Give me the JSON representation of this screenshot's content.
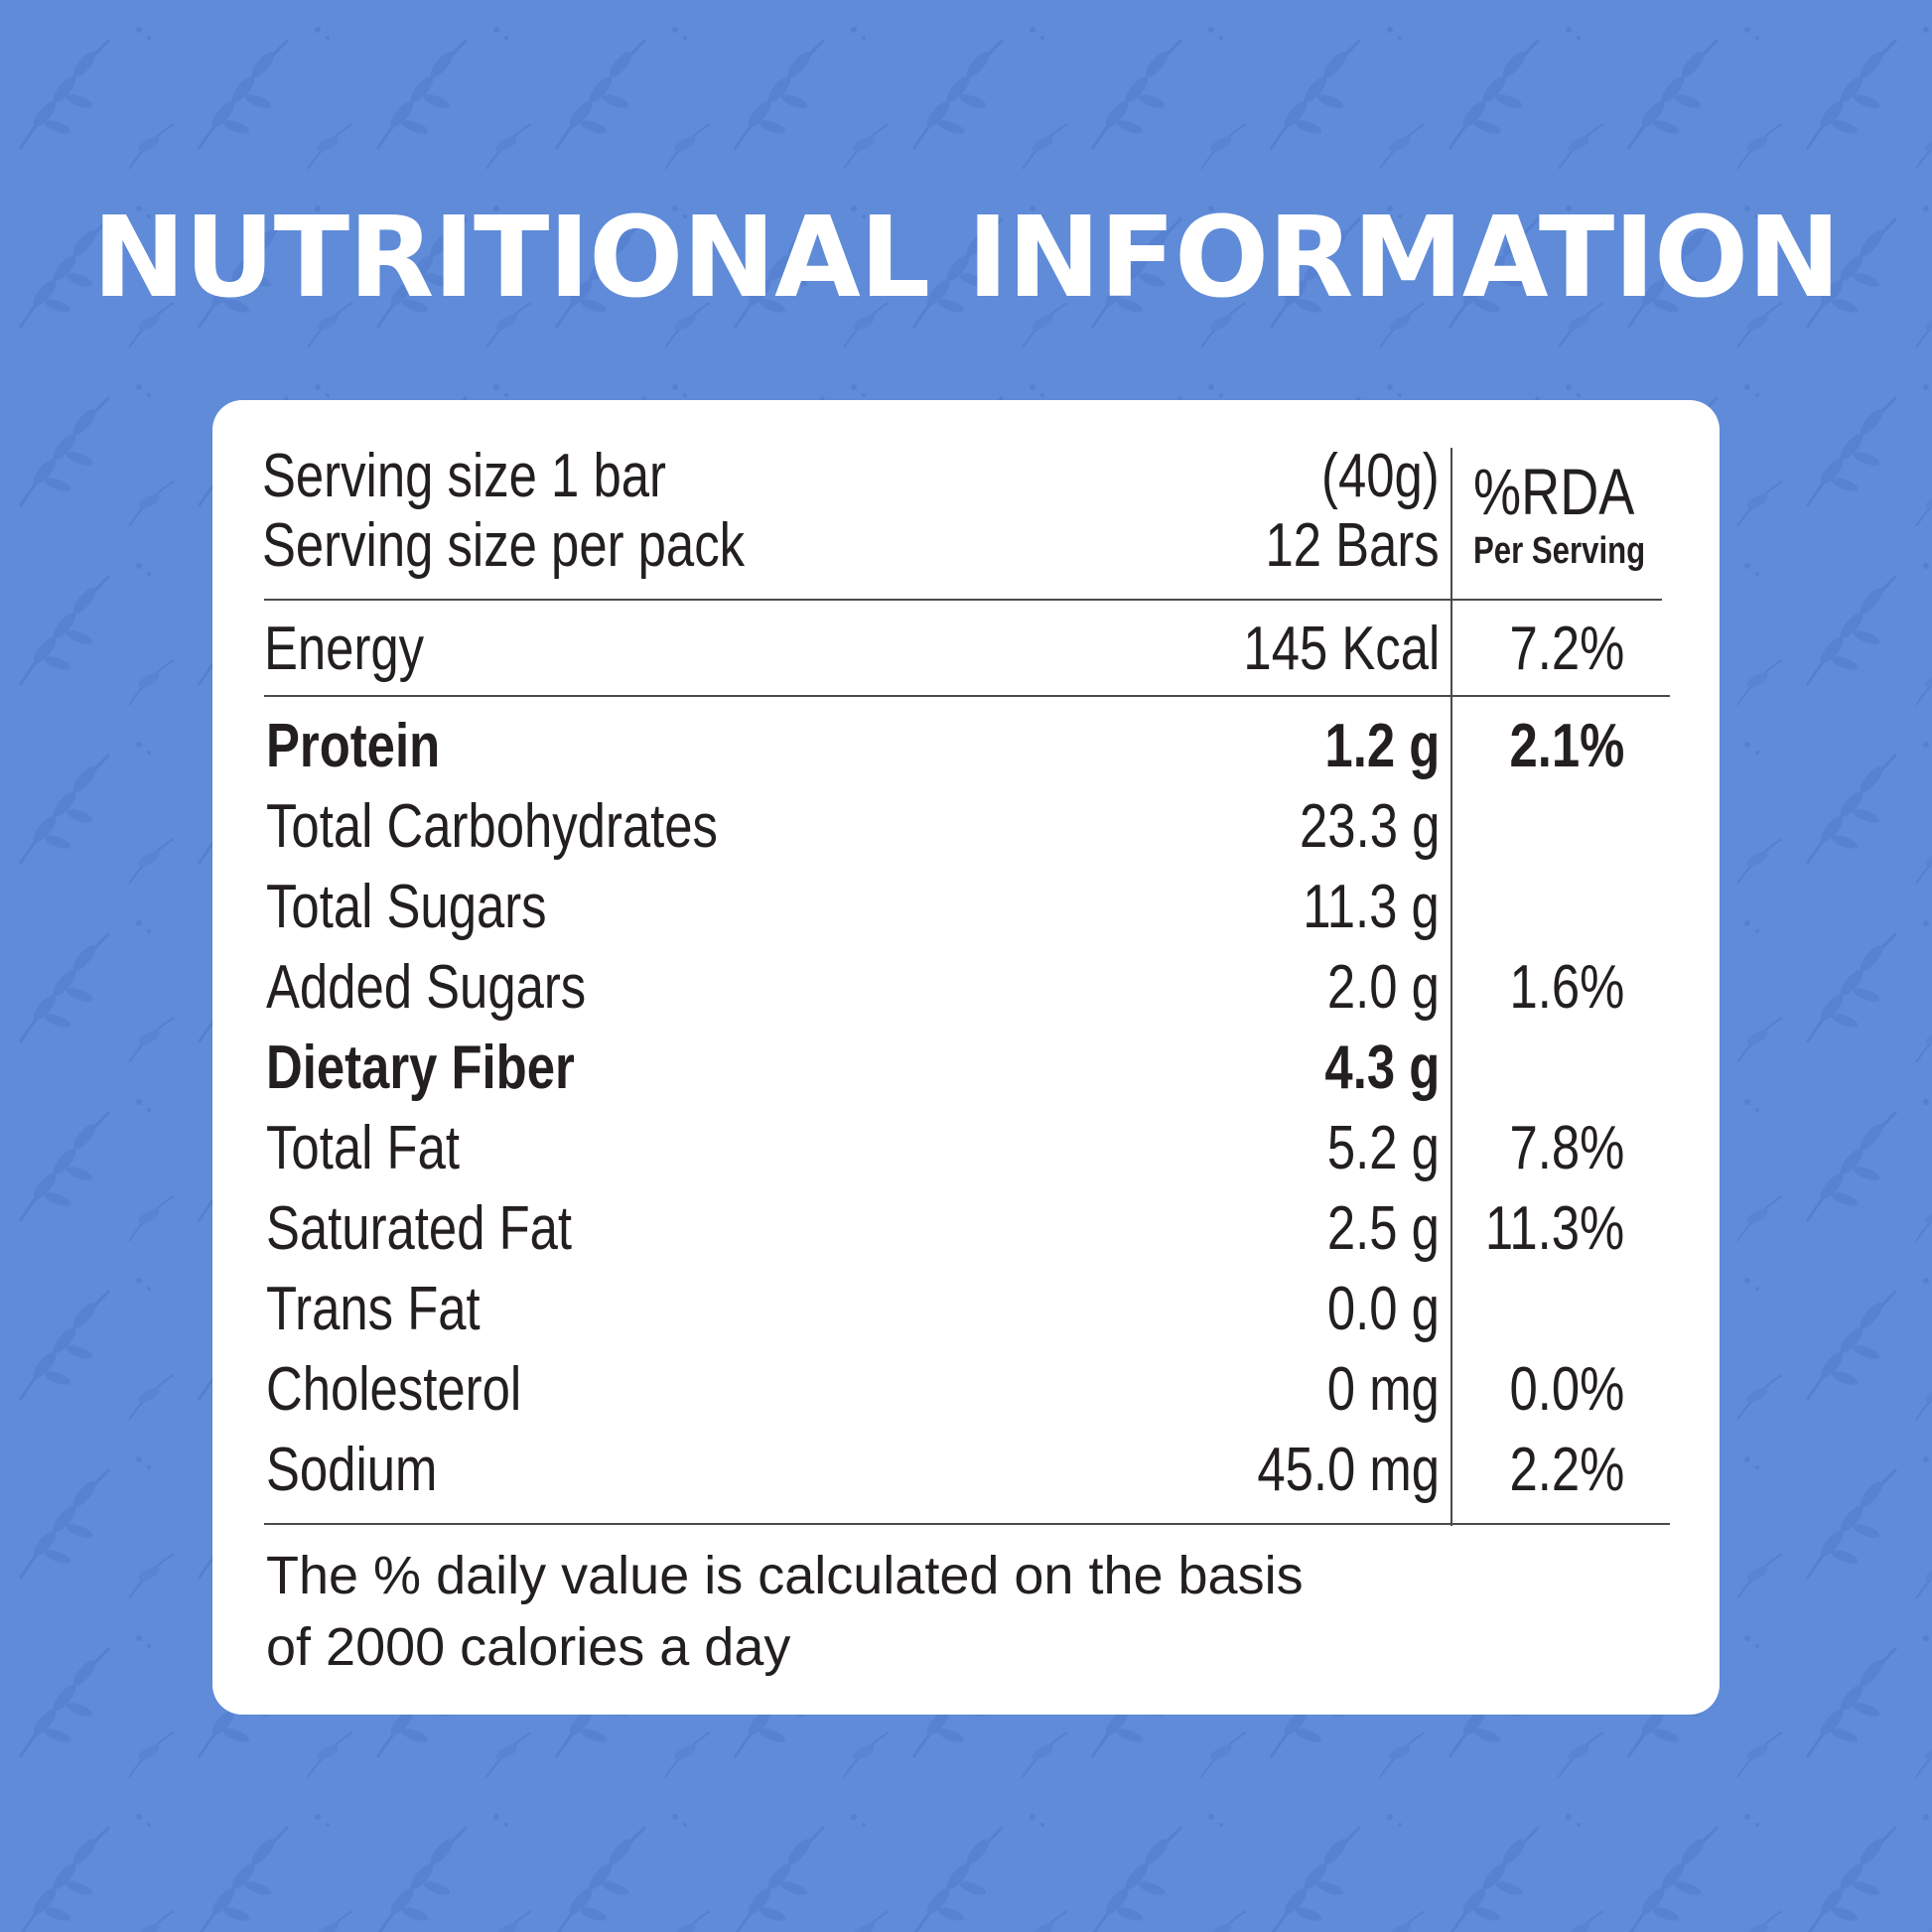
{
  "title": "NUTRITIONAL INFORMATION",
  "serving": {
    "size_label": "Serving size 1 bar",
    "size_value": "(40g)",
    "per_pack_label": "Serving size per pack",
    "per_pack_value": "12 Bars"
  },
  "rda_header": {
    "title": "%RDA",
    "subtitle": "Per Serving"
  },
  "energy": {
    "name": "Energy",
    "amount": "145 Kcal",
    "rda": "7.2%"
  },
  "nutrients": [
    {
      "name": "Protein",
      "amount": "1.2 g",
      "rda": "2.1%",
      "bold": true
    },
    {
      "name": "Total Carbohydrates",
      "amount": "23.3 g",
      "rda": "",
      "bold": false
    },
    {
      "name": "Total Sugars",
      "amount": "11.3 g",
      "rda": "",
      "bold": false
    },
    {
      "name": "Added Sugars",
      "amount": "2.0 g",
      "rda": "1.6%",
      "bold": false
    },
    {
      "name": "Dietary Fiber",
      "amount": "4.3 g",
      "rda": "",
      "bold": true
    },
    {
      "name": "Total Fat",
      "amount": "5.2 g",
      "rda": "7.8%",
      "bold": false
    },
    {
      "name": "Saturated Fat",
      "amount": "2.5 g",
      "rda": "11.3%",
      "bold": false
    },
    {
      "name": "Trans Fat",
      "amount": "0.0 g",
      "rda": "",
      "bold": false
    },
    {
      "name": "Cholesterol",
      "amount": "0 mg",
      "rda": "0.0%",
      "bold": false
    },
    {
      "name": "Sodium",
      "amount": "45.0 mg",
      "rda": "2.2%",
      "bold": false
    }
  ],
  "footnote": {
    "line1": "The % daily value is calculated on the basis",
    "line2": "of 2000 calories a day"
  },
  "colors": {
    "background": "#5f8bd8",
    "pattern": "#5681cf",
    "card": "#ffffff",
    "text": "#231f20"
  }
}
